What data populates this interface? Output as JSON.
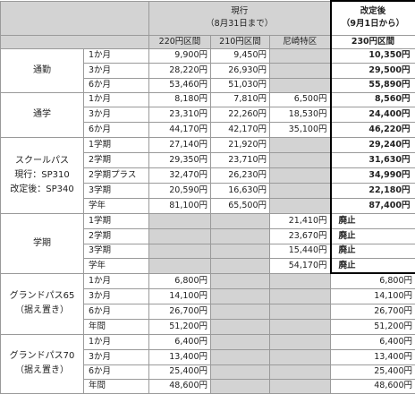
{
  "header": {
    "current": "現行",
    "current_note": "（8月31日まで）",
    "revised": "改定後",
    "revised_note": "（9月1日から）",
    "col_220": "220円区間",
    "col_210": "210円区間",
    "col_amagasaki": "尼崎特区",
    "col_230": "230円区間"
  },
  "sections": [
    {
      "label": "通勤",
      "rows": [
        {
          "period": "1か月",
          "p220": "9,900円",
          "p210": "9,450円",
          "pamg": "",
          "pnew": "10,350円"
        },
        {
          "period": "3か月",
          "p220": "28,220円",
          "p210": "26,930円",
          "pamg": "",
          "pnew": "29,500円"
        },
        {
          "period": "6か月",
          "p220": "53,460円",
          "p210": "51,030円",
          "pamg": "",
          "pnew": "55,890円"
        }
      ]
    },
    {
      "label": "通学",
      "rows": [
        {
          "period": "1か月",
          "p220": "8,180円",
          "p210": "7,810円",
          "pamg": "6,500円",
          "pnew": "8,560円"
        },
        {
          "period": "3か月",
          "p220": "23,310円",
          "p210": "22,260円",
          "pamg": "18,530円",
          "pnew": "24,400円"
        },
        {
          "period": "6か月",
          "p220": "44,170円",
          "p210": "42,170円",
          "pamg": "35,100円",
          "pnew": "46,220円"
        }
      ]
    },
    {
      "label": "スクールパス",
      "label2": "現行：SP310",
      "label3": "改定後：SP340",
      "rows": [
        {
          "period": "1学期",
          "p220": "27,140円",
          "p210": "21,920円",
          "pamg": "",
          "pnew": "29,240円"
        },
        {
          "period": "2学期",
          "p220": "29,350円",
          "p210": "23,710円",
          "pamg": "",
          "pnew": "31,630円"
        },
        {
          "period": "2学期プラス",
          "p220": "32,470円",
          "p210": "26,230円",
          "pamg": "",
          "pnew": "34,990円"
        },
        {
          "period": "3学期",
          "p220": "20,590円",
          "p210": "16,630円",
          "pamg": "",
          "pnew": "22,180円"
        },
        {
          "period": "学年",
          "p220": "81,100円",
          "p210": "65,500円",
          "pamg": "",
          "pnew": "87,400円"
        }
      ]
    },
    {
      "label": "学期",
      "rows": [
        {
          "period": "1学期",
          "p220": "",
          "p210": "",
          "pamg": "21,410円",
          "pnew": "廃止"
        },
        {
          "period": "2学期",
          "p220": "",
          "p210": "",
          "pamg": "23,670円",
          "pnew": "廃止"
        },
        {
          "period": "3学期",
          "p220": "",
          "p210": "",
          "pamg": "15,440円",
          "pnew": "廃止"
        },
        {
          "period": "学年",
          "p220": "",
          "p210": "",
          "pamg": "54,170円",
          "pnew": "廃止"
        }
      ]
    },
    {
      "label": "グランドパス65",
      "label2": "（据え置き）",
      "rows": [
        {
          "period": "1か月",
          "p220": "6,800円",
          "p210": "",
          "pamg": "",
          "pnew": "6,800円"
        },
        {
          "period": "3か月",
          "p220": "14,100円",
          "p210": "",
          "pamg": "",
          "pnew": "14,100円"
        },
        {
          "period": "6か月",
          "p220": "26,700円",
          "p210": "",
          "pamg": "",
          "pnew": "26,700円"
        },
        {
          "period": "年間",
          "p220": "51,200円",
          "p210": "",
          "pamg": "",
          "pnew": "51,200円"
        }
      ]
    },
    {
      "label": "グランドパス70",
      "label2": "（据え置き）",
      "rows": [
        {
          "period": "1か月",
          "p220": "6,400円",
          "p210": "",
          "pamg": "",
          "pnew": "6,400円"
        },
        {
          "period": "3か月",
          "p220": "13,400円",
          "p210": "",
          "pamg": "",
          "pnew": "13,400円"
        },
        {
          "period": "6か月",
          "p220": "25,400円",
          "p210": "",
          "pamg": "",
          "pnew": "25,400円"
        },
        {
          "period": "年間",
          "p220": "48,600円",
          "p210": "",
          "pamg": "",
          "pnew": "48,600円"
        }
      ]
    }
  ]
}
